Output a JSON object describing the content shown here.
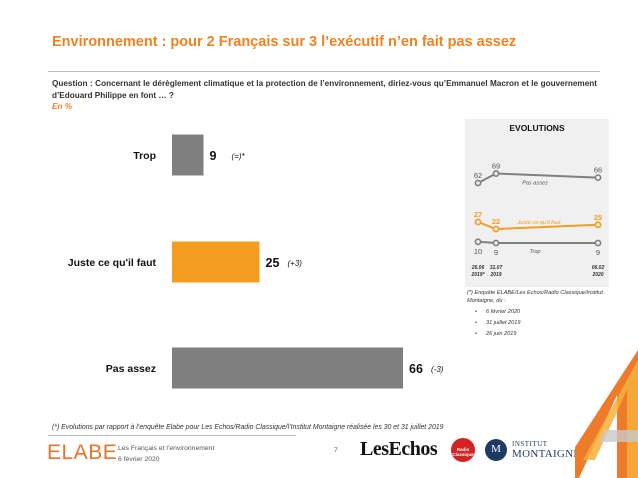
{
  "title": "Environnement : pour 2 Français sur 3 l’exécutif n’en fait pas assez",
  "question": "Question : Concernant le dérèglement climatique et la protection de l’environnement, diriez-vous qu’Emmanuel Macron et le gouvernement d’Edouard Philippe en font … ?",
  "unit_note": "En %",
  "chart_data": [
    {
      "type": "bar",
      "orientation": "horizontal",
      "categories": [
        "Trop",
        "Juste ce qu'il faut",
        "Pas assez"
      ],
      "values": [
        9,
        25,
        66
      ],
      "changes": [
        "(=)*",
        "(+3)",
        "(-3)"
      ],
      "colors": [
        "#7f7f7f",
        "#f39c1f",
        "#7f7f7f"
      ]
    },
    {
      "type": "line",
      "title": "EVOLUTIONS",
      "x": [
        "26.06 2019*",
        "31.07 2019",
        "06.02 2020"
      ],
      "series": [
        {
          "name": "Pas assez",
          "values": [
            62,
            69,
            66
          ],
          "color": "#7f7f7f"
        },
        {
          "name": "Juste ce qu'il faut",
          "values": [
            27,
            22,
            25
          ],
          "color": "#f39c1f"
        },
        {
          "name": "Trop",
          "values": [
            10,
            9,
            9
          ],
          "color": "#7f7f7f"
        }
      ]
    }
  ],
  "evolutions_footnote": {
    "intro": "(*) Enquête ELABE/Les Echos/Radio Classique/Institut Montaigne, du :",
    "dates": [
      "6 février 2020",
      "31 juillet 2019",
      "26 juin 2019"
    ]
  },
  "footnote": "(*) Evolutions par rapport à l’enquête Elabe pour Les Echos/Radio Classique/l’Institut Montaigne réalisée les 30 et 31 juillet 2019",
  "footer": {
    "brand": "ELABE",
    "subtitle": "Les Français et l’environnement",
    "date": "6 février 2020",
    "page": "7",
    "partner1": "LesEchos",
    "partner2": "Radio Classique",
    "partner3_mark": "M",
    "partner3_line1": "INSTITUT",
    "partner3_line2": "MONTAIGNE"
  },
  "colors": {
    "accent": "#f0821e",
    "bar_gray": "#7f7f7f",
    "bar_orange": "#f39c1f"
  }
}
